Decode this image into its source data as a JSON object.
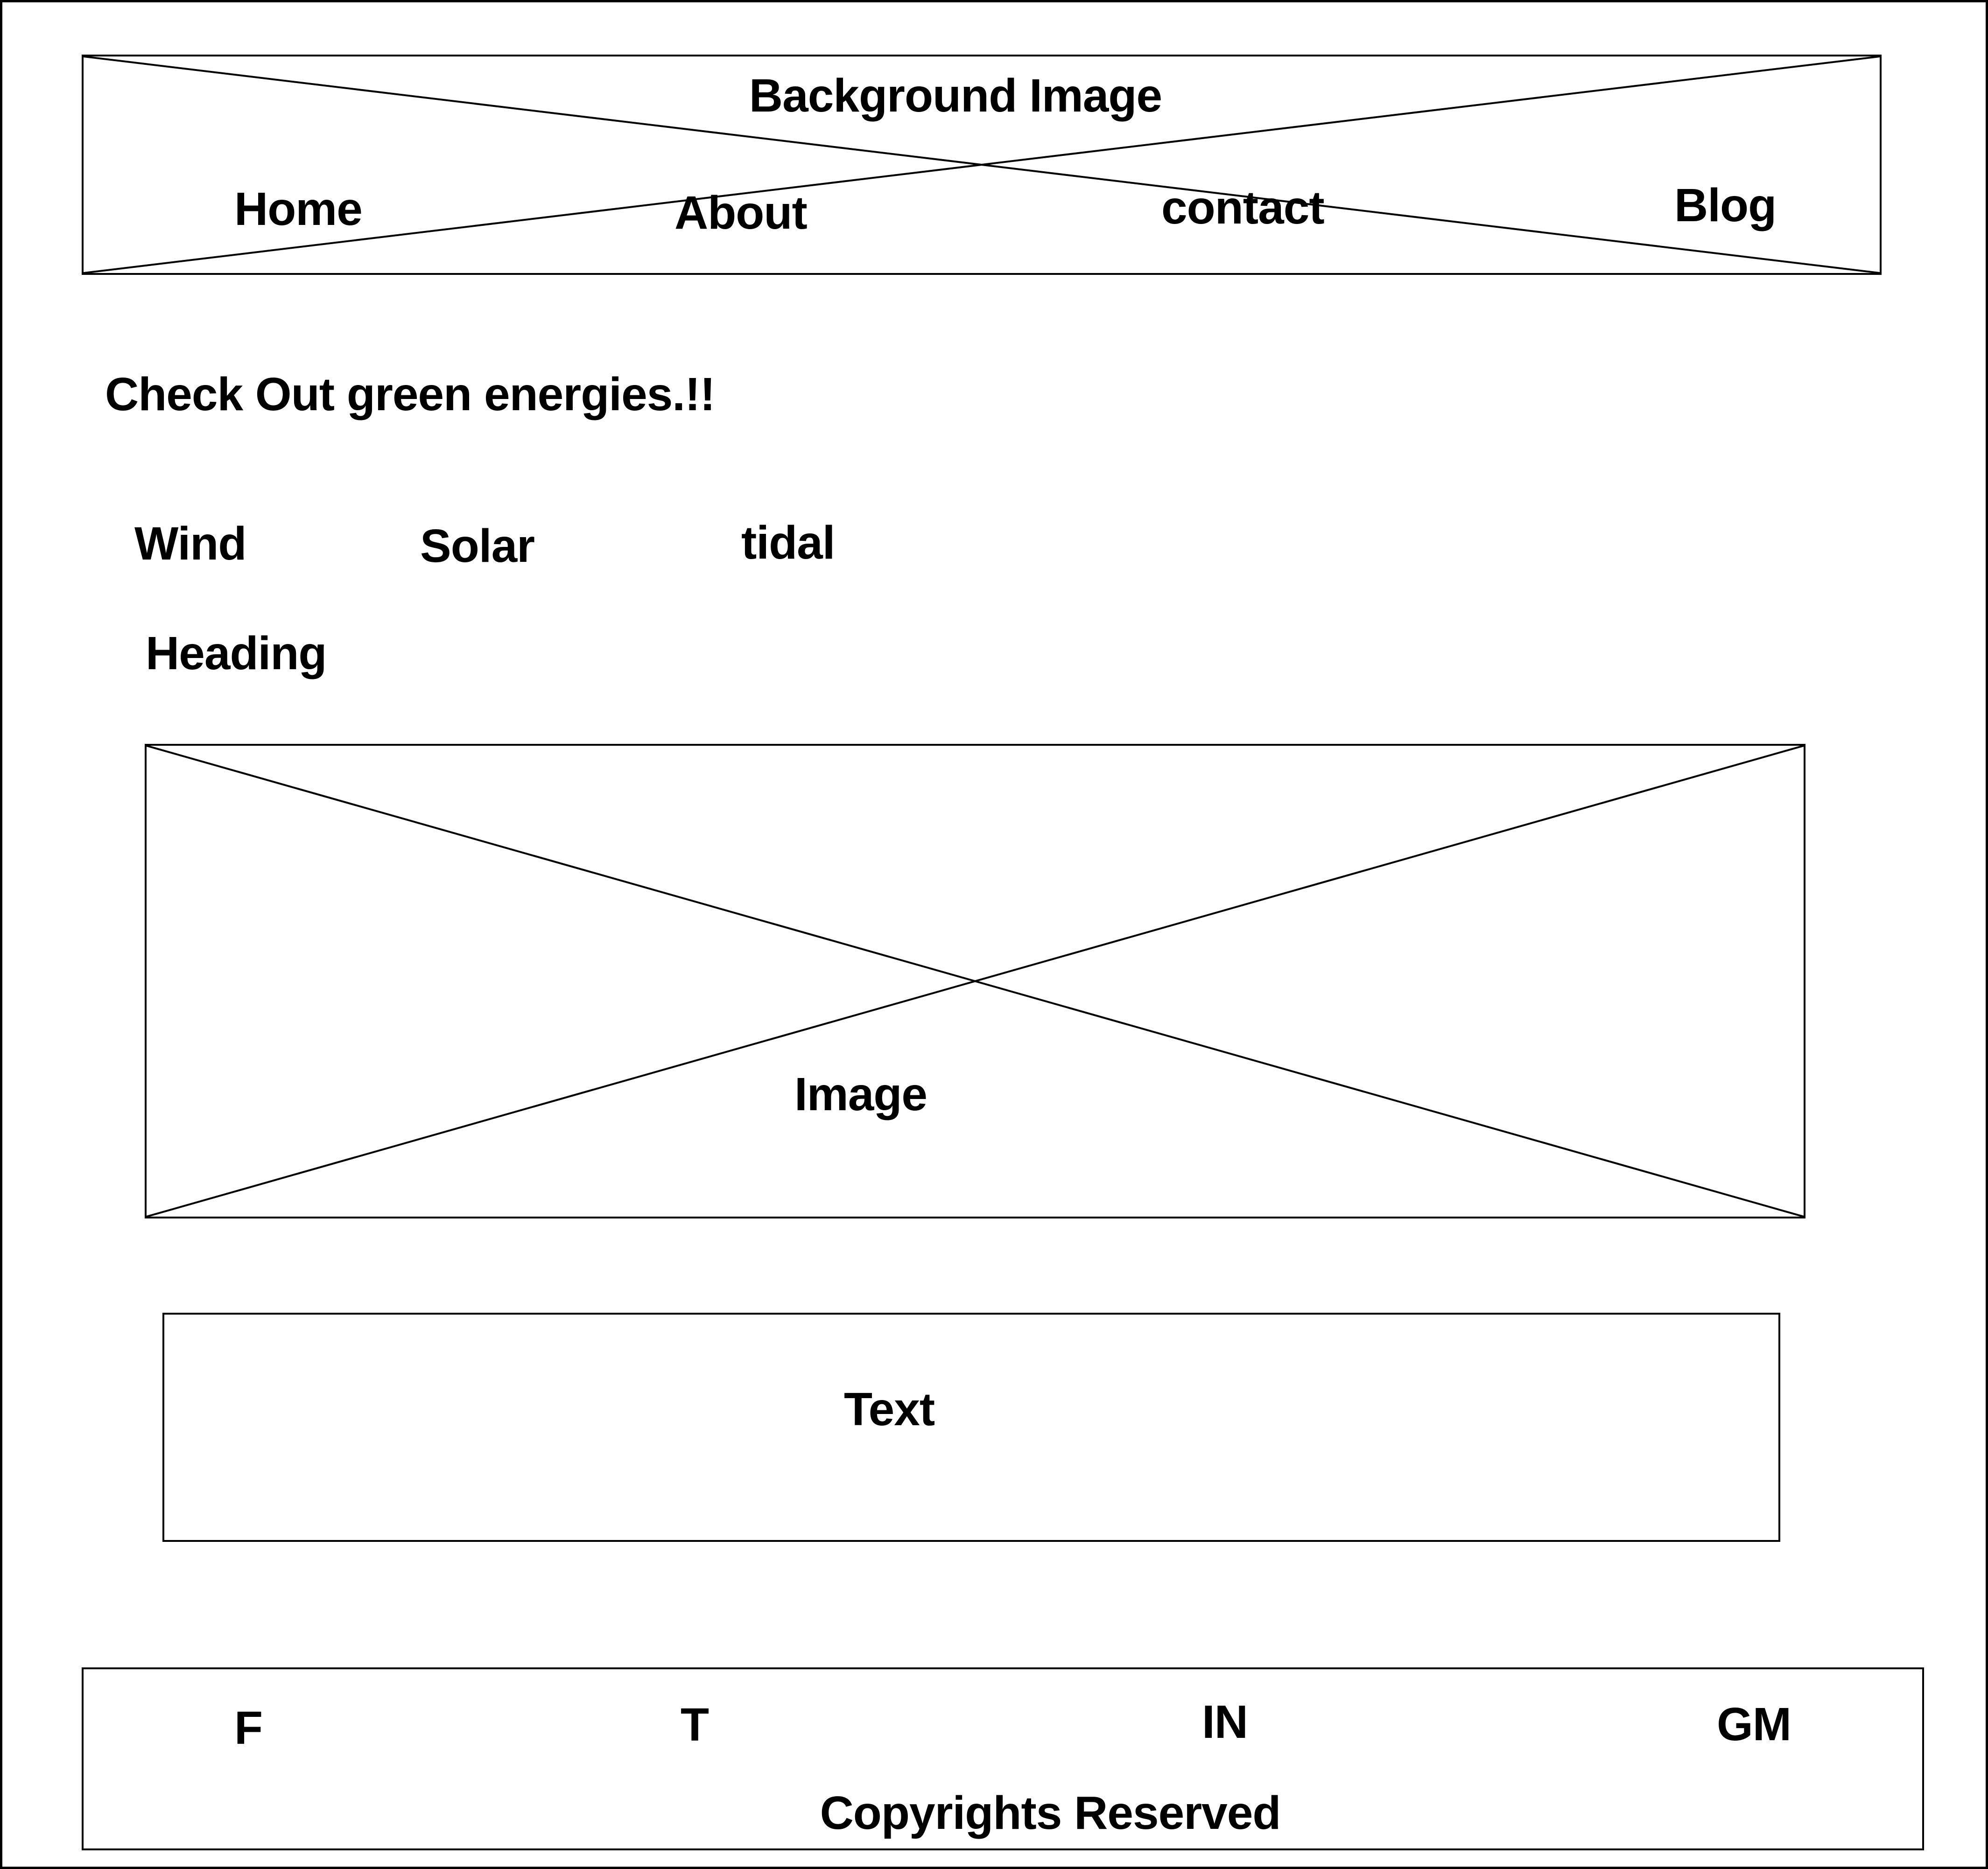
{
  "header": {
    "background_label": "Background Image",
    "nav": {
      "home": "Home",
      "about": "About",
      "contact": "contact",
      "blog": "Blog"
    }
  },
  "main": {
    "tagline": "Check Out green energies.!!",
    "tabs": {
      "wind": "Wind",
      "solar": "Solar",
      "tidal": "tidal"
    },
    "heading": "Heading",
    "image_label": "Image",
    "text_label": "Text"
  },
  "footer": {
    "social": {
      "f": "F",
      "t": "T",
      "in": "IN",
      "gm": "GM"
    },
    "copyright": "Copyrights Reserved"
  },
  "colors": {
    "stroke": "#000000",
    "background": "#ffffff"
  }
}
